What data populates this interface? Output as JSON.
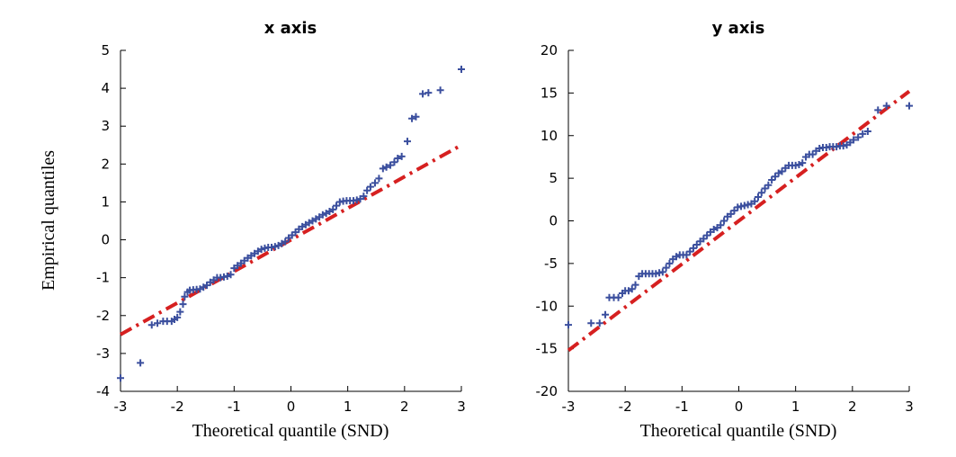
{
  "figure": {
    "ylabel": "Empirical quantiles",
    "colors": {
      "marker": "#3b4f9e",
      "fit_line": "#d62020"
    }
  },
  "chart_data": [
    {
      "type": "scatter",
      "title": "x axis",
      "xlabel": "Theoretical quantile (SND)",
      "ylabel": "Empirical quantiles",
      "xlim": [
        -3,
        3
      ],
      "ylim": [
        -4,
        5
      ],
      "xticks": [
        -3,
        -2,
        -1,
        0,
        1,
        2,
        3
      ],
      "yticks": [
        -4,
        -3,
        -2,
        -1,
        0,
        1,
        2,
        3,
        4,
        5
      ],
      "reference_line": {
        "x": [
          -3,
          3
        ],
        "y": [
          -2.5,
          2.5
        ],
        "style": "dash-dot"
      },
      "series": [
        {
          "name": "empirical",
          "marker": "+",
          "x": [
            -3.0,
            -2.65,
            -2.45,
            -2.35,
            -2.25,
            -2.18,
            -2.1,
            -2.05,
            -2.0,
            -1.95,
            -1.9,
            -1.87,
            -1.82,
            -1.78,
            -1.72,
            -1.66,
            -1.6,
            -1.54,
            -1.48,
            -1.42,
            -1.36,
            -1.3,
            -1.24,
            -1.18,
            -1.12,
            -1.06,
            -1.0,
            -0.94,
            -0.88,
            -0.82,
            -0.76,
            -0.7,
            -0.64,
            -0.58,
            -0.52,
            -0.46,
            -0.4,
            -0.34,
            -0.28,
            -0.22,
            -0.16,
            -0.1,
            -0.04,
            0.02,
            0.08,
            0.14,
            0.2,
            0.26,
            0.32,
            0.38,
            0.44,
            0.5,
            0.56,
            0.62,
            0.68,
            0.74,
            0.8,
            0.86,
            0.92,
            0.98,
            1.04,
            1.1,
            1.16,
            1.22,
            1.28,
            1.34,
            1.4,
            1.48,
            1.55,
            1.62,
            1.68,
            1.75,
            1.82,
            1.88,
            1.95,
            2.05,
            2.13,
            2.2,
            2.32,
            2.42,
            2.63,
            3.0
          ],
          "y": [
            -3.65,
            -3.25,
            -2.25,
            -2.2,
            -2.15,
            -2.15,
            -2.15,
            -2.1,
            -2.05,
            -1.9,
            -1.7,
            -1.5,
            -1.38,
            -1.33,
            -1.32,
            -1.31,
            -1.3,
            -1.25,
            -1.2,
            -1.12,
            -1.06,
            -1.0,
            -1.0,
            -0.98,
            -0.96,
            -0.92,
            -0.75,
            -0.68,
            -0.62,
            -0.55,
            -0.48,
            -0.42,
            -0.36,
            -0.3,
            -0.25,
            -0.22,
            -0.2,
            -0.2,
            -0.18,
            -0.15,
            -0.1,
            -0.05,
            0.05,
            0.12,
            0.2,
            0.28,
            0.35,
            0.4,
            0.45,
            0.5,
            0.55,
            0.6,
            0.66,
            0.7,
            0.75,
            0.8,
            0.9,
            1.0,
            1.02,
            1.03,
            1.03,
            1.03,
            1.05,
            1.08,
            1.15,
            1.3,
            1.4,
            1.5,
            1.62,
            1.88,
            1.92,
            1.97,
            2.05,
            2.15,
            2.2,
            2.6,
            3.2,
            3.25,
            3.85,
            3.88,
            3.95,
            4.5
          ]
        }
      ]
    },
    {
      "type": "scatter",
      "title": "y axis",
      "xlabel": "Theoretical quantile (SND)",
      "ylabel": "",
      "xlim": [
        -3,
        3
      ],
      "ylim": [
        -20,
        20
      ],
      "xticks": [
        -3,
        -2,
        -1,
        0,
        1,
        2,
        3
      ],
      "yticks": [
        -20,
        -15,
        -10,
        -5,
        0,
        5,
        10,
        15,
        20
      ],
      "reference_line": {
        "x": [
          -3,
          3
        ],
        "y": [
          -15.2,
          15.2
        ],
        "style": "dash-dot"
      },
      "series": [
        {
          "name": "empirical",
          "marker": "+",
          "x": [
            -3.0,
            -2.6,
            -2.45,
            -2.35,
            -2.28,
            -2.2,
            -2.12,
            -2.05,
            -2.0,
            -1.94,
            -1.88,
            -1.82,
            -1.76,
            -1.7,
            -1.64,
            -1.58,
            -1.52,
            -1.46,
            -1.4,
            -1.34,
            -1.28,
            -1.22,
            -1.16,
            -1.1,
            -1.04,
            -0.98,
            -0.92,
            -0.86,
            -0.8,
            -0.74,
            -0.68,
            -0.62,
            -0.56,
            -0.5,
            -0.44,
            -0.38,
            -0.32,
            -0.26,
            -0.2,
            -0.14,
            -0.08,
            -0.02,
            0.04,
            0.1,
            0.16,
            0.22,
            0.28,
            0.34,
            0.4,
            0.46,
            0.52,
            0.58,
            0.64,
            0.7,
            0.76,
            0.82,
            0.88,
            0.94,
            1.0,
            1.06,
            1.12,
            1.18,
            1.24,
            1.3,
            1.36,
            1.42,
            1.48,
            1.54,
            1.6,
            1.66,
            1.72,
            1.78,
            1.84,
            1.9,
            1.96,
            2.02,
            2.1,
            2.18,
            2.27,
            2.45,
            2.6,
            3.0
          ],
          "y": [
            -12.2,
            -12.0,
            -12.0,
            -11.0,
            -9.0,
            -9.0,
            -9.0,
            -8.5,
            -8.2,
            -8.2,
            -8.0,
            -7.5,
            -6.5,
            -6.2,
            -6.2,
            -6.2,
            -6.2,
            -6.2,
            -6.1,
            -6.0,
            -5.5,
            -5.0,
            -4.5,
            -4.2,
            -4.0,
            -4.0,
            -4.0,
            -3.6,
            -3.2,
            -2.8,
            -2.4,
            -2.1,
            -1.7,
            -1.3,
            -1.0,
            -0.8,
            -0.5,
            0.0,
            0.5,
            0.8,
            1.2,
            1.6,
            1.7,
            1.8,
            1.9,
            2.0,
            2.3,
            2.8,
            3.3,
            3.8,
            4.2,
            4.8,
            5.2,
            5.6,
            5.8,
            6.2,
            6.5,
            6.5,
            6.5,
            6.6,
            6.8,
            7.5,
            7.8,
            7.8,
            8.2,
            8.5,
            8.6,
            8.6,
            8.7,
            8.7,
            8.7,
            8.8,
            8.8,
            8.9,
            9.2,
            9.5,
            9.8,
            10.2,
            10.5,
            13.0,
            13.5,
            13.5
          ]
        }
      ]
    }
  ]
}
